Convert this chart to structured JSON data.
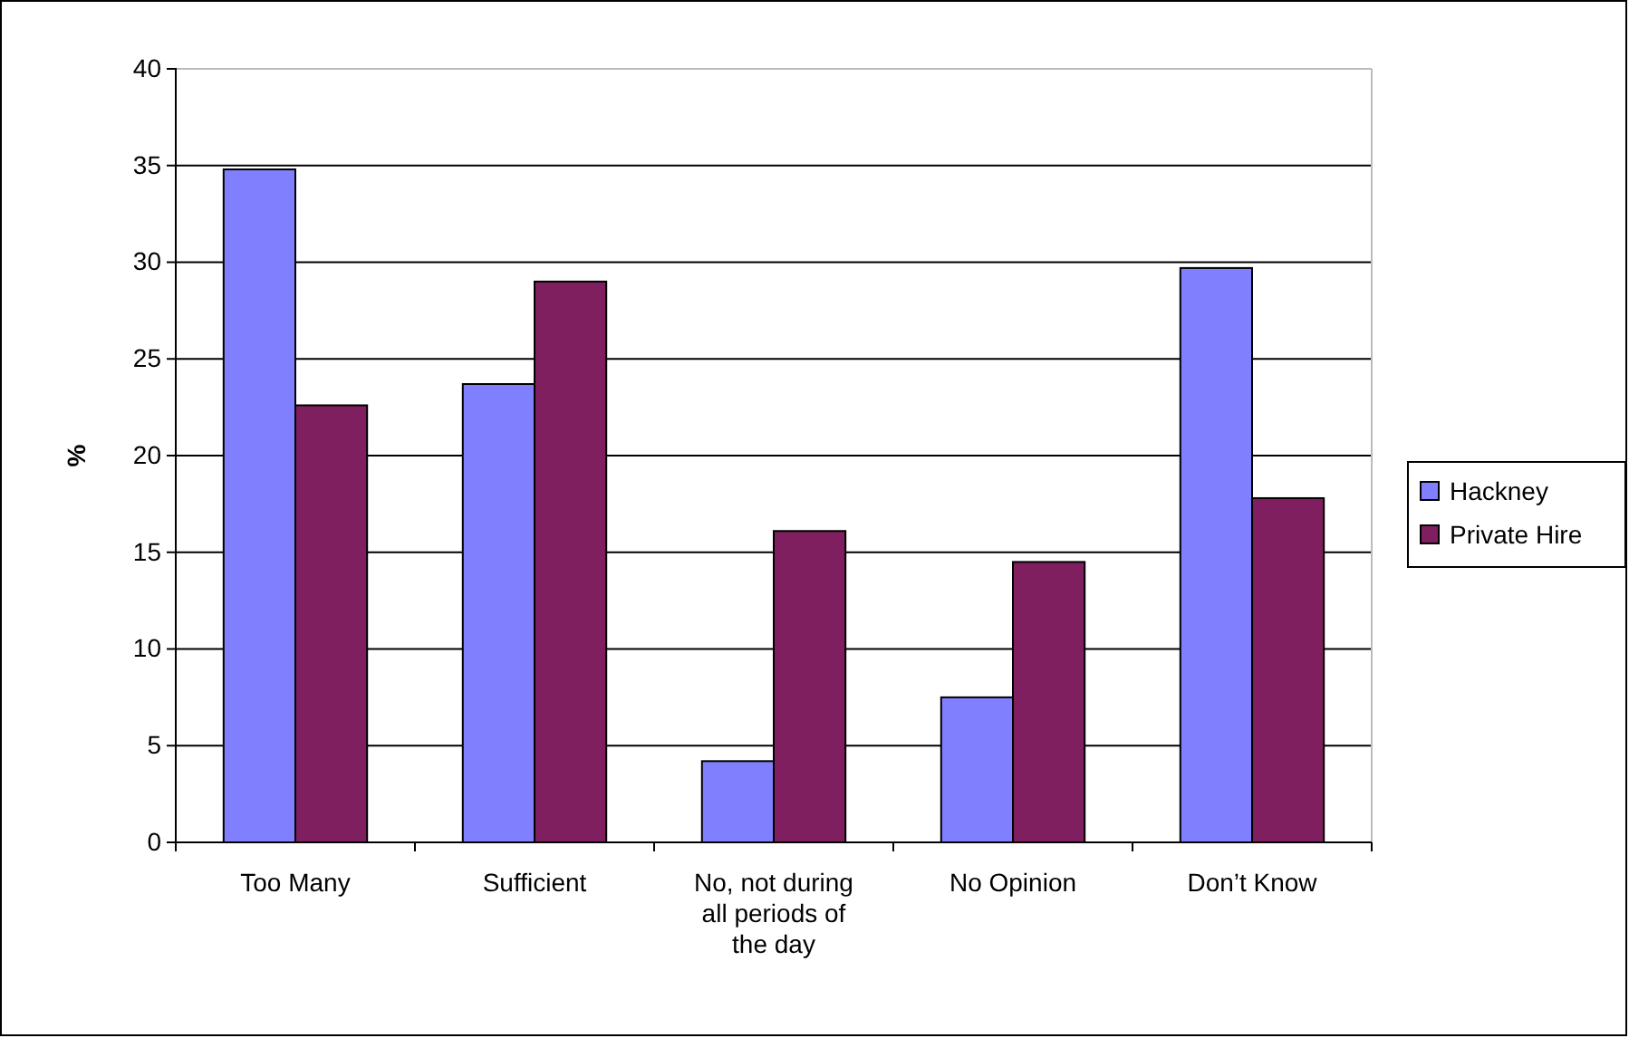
{
  "chart_data": {
    "type": "bar",
    "ylabel": "%",
    "categories": [
      "Too Many",
      "Sufficient",
      "No, not during all periods of the day",
      "No Opinion",
      "Don’t Know"
    ],
    "series": [
      {
        "name": "Hackney",
        "color": "#8080ff",
        "values": [
          34.8,
          23.7,
          4.2,
          7.5,
          29.7
        ]
      },
      {
        "name": "Private Hire",
        "color": "#7f1f5f",
        "values": [
          22.6,
          29.0,
          16.1,
          14.5,
          17.8
        ]
      }
    ],
    "ylim": [
      0,
      40
    ],
    "yticks": [
      0,
      5,
      10,
      15,
      20,
      25,
      30,
      35,
      40
    ],
    "grid": "y",
    "legend": "right"
  }
}
